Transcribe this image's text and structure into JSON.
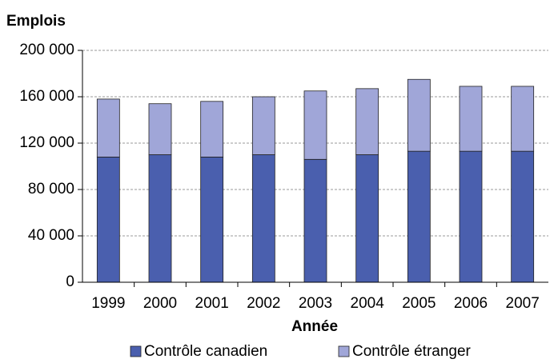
{
  "chart_data": {
    "type": "stacked-bar",
    "title": "Emplois",
    "x_label": "Année",
    "categories": [
      "1999",
      "2000",
      "2001",
      "2002",
      "2003",
      "2004",
      "2005",
      "2006",
      "2007"
    ],
    "series": [
      {
        "name": "Contrôle canadien",
        "color": "#4a5fae",
        "values": [
          108000,
          110000,
          108000,
          110000,
          106000,
          110000,
          113000,
          113000,
          113000
        ]
      },
      {
        "name": "Contrôle étranger",
        "color": "#a0a6d8",
        "values": [
          50000,
          44000,
          48000,
          50000,
          59000,
          57000,
          62000,
          56000,
          56000
        ]
      }
    ],
    "ylim": [
      0,
      200000
    ],
    "yticks": [
      0,
      {
        "value": 40000,
        "label": "40 000"
      },
      {
        "value": 80000,
        "label": "80 000"
      },
      {
        "value": 120000,
        "label": "120 000"
      },
      {
        "value": 160000,
        "label": "160 000"
      },
      {
        "value": 200000,
        "label": "200 000"
      }
    ],
    "grid": true
  }
}
